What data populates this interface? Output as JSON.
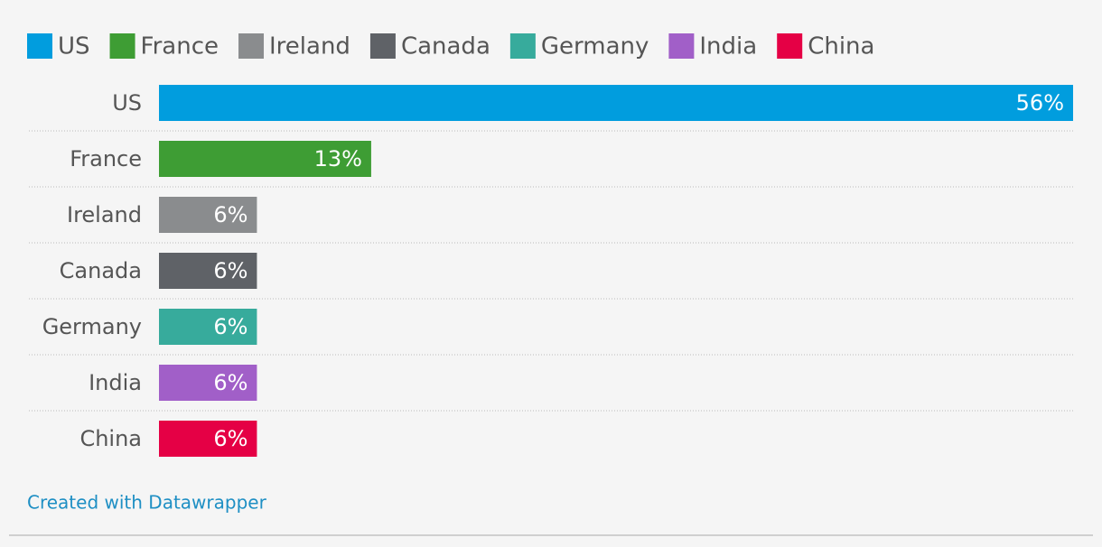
{
  "chart_data": {
    "type": "bar",
    "orientation": "horizontal",
    "categories": [
      "US",
      "France",
      "Ireland",
      "Canada",
      "Germany",
      "India",
      "China"
    ],
    "values": [
      56,
      13,
      6,
      6,
      6,
      6,
      6
    ],
    "value_labels": [
      "56%",
      "13%",
      "6%",
      "6%",
      "6%",
      "6%",
      "6%"
    ],
    "colors": [
      "#019dde",
      "#3e9d34",
      "#8a8c8e",
      "#5f6267",
      "#37ab9c",
      "#a15fc8",
      "#e50045"
    ],
    "credit": "Created with Datawrapper"
  }
}
